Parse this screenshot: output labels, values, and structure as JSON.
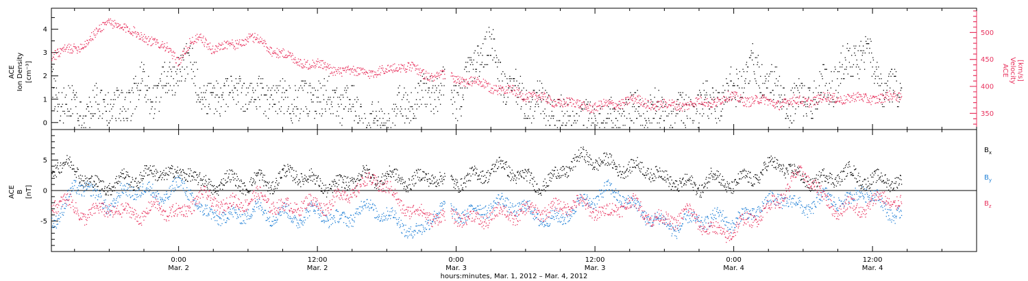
{
  "colors": {
    "black": "#000000",
    "pink": "#e8305c",
    "blue": "#1e7fd6"
  },
  "time_axis": {
    "caption": "hours:minutes, Mar. 1, 2012 – Mar. 4, 2012",
    "ticks": [
      {
        "hours": 24,
        "time": "0:00",
        "date": "Mar. 2"
      },
      {
        "hours": 36,
        "time": "12:00",
        "date": "Mar. 2"
      },
      {
        "hours": 48,
        "time": "0:00",
        "date": "Mar. 3"
      },
      {
        "hours": 60,
        "time": "12:00",
        "date": "Mar. 3"
      },
      {
        "hours": 72,
        "time": "0:00",
        "date": "Mar. 4"
      },
      {
        "hours": 84,
        "time": "12:00",
        "date": "Mar. 4"
      }
    ],
    "range_hours": [
      13,
      93
    ],
    "data_end_hours": 86.5,
    "data_gap_hours": [
      47.0,
      47.5
    ]
  },
  "chart_data": [
    {
      "type": "scatter",
      "panel": "top",
      "left_axis": {
        "title_lines": [
          "ACE",
          "Ion Density"
        ],
        "unit": "[cm⁻³]",
        "range": [
          -0.3,
          4.9
        ],
        "ticks": [
          0,
          1,
          2,
          3,
          4
        ],
        "tick_labels": [
          "0",
          "1",
          "2",
          "3",
          "4"
        ]
      },
      "right_axis": {
        "title_lines": [
          "ACE",
          "Velocity"
        ],
        "unit": "[km/s]",
        "range": [
          320,
          545
        ],
        "ticks": [
          350,
          400,
          450,
          500
        ],
        "tick_labels": [
          "350",
          "400",
          "450",
          "500"
        ]
      },
      "series": [
        {
          "color": "black",
          "axis": "left",
          "x_hours": [
            13,
            14,
            15,
            16,
            17,
            18,
            19,
            20,
            21,
            22,
            23,
            24,
            25,
            26,
            27,
            28,
            29,
            30,
            31,
            32,
            33,
            34,
            35,
            36,
            37,
            38,
            39,
            40,
            41,
            42,
            43,
            44,
            45,
            46,
            47,
            48,
            49,
            50,
            51,
            52,
            53,
            54,
            55,
            56,
            57,
            58,
            59,
            60,
            61,
            62,
            63,
            64,
            65,
            66,
            67,
            68,
            69,
            70,
            71,
            72,
            73,
            74,
            75,
            76,
            77,
            78,
            79,
            80,
            81,
            82,
            83,
            84,
            85,
            86
          ],
          "values": [
            1.5,
            1.0,
            0.6,
            0.4,
            0.7,
            0.9,
            0.4,
            1.3,
            1.6,
            1.1,
            1.8,
            2.3,
            2.6,
            1.2,
            0.8,
            1.5,
            1.0,
            1.3,
            0.9,
            1.2,
            0.8,
            1.1,
            0.7,
            1.4,
            0.9,
            1.0,
            0.6,
            0.1,
            0.1,
            0.1,
            0.5,
            0.9,
            1.2,
            1.3,
            1.6,
            1.0,
            1.8,
            3.0,
            3.3,
            1.8,
            1.2,
            1.0,
            0.8,
            0.6,
            0.3,
            0.2,
            0.1,
            0.1,
            0.2,
            0.3,
            0.5,
            0.4,
            0.6,
            0.2,
            0.3,
            0.5,
            0.6,
            0.9,
            1.1,
            1.6,
            2.1,
            2.5,
            1.6,
            1.2,
            0.7,
            1.0,
            1.2,
            1.6,
            2.0,
            2.7,
            3.0,
            2.5,
            1.2,
            1.4
          ]
        },
        {
          "color": "pink",
          "axis": "right",
          "x_hours": [
            13,
            14,
            15,
            16,
            17,
            18,
            19,
            20,
            21,
            22,
            23,
            24,
            25,
            26,
            27,
            28,
            29,
            30,
            31,
            32,
            33,
            34,
            35,
            36,
            37,
            38,
            39,
            40,
            41,
            42,
            43,
            44,
            45,
            46,
            47,
            48,
            49,
            50,
            51,
            52,
            53,
            54,
            55,
            56,
            57,
            58,
            59,
            60,
            61,
            62,
            63,
            64,
            65,
            66,
            67,
            68,
            69,
            70,
            71,
            72,
            73,
            74,
            75,
            76,
            77,
            78,
            79,
            80,
            81,
            82,
            83,
            84,
            85,
            86
          ],
          "values": [
            460,
            465,
            470,
            485,
            500,
            525,
            510,
            500,
            495,
            480,
            470,
            450,
            480,
            490,
            470,
            475,
            480,
            490,
            485,
            470,
            460,
            450,
            445,
            440,
            435,
            430,
            425,
            430,
            425,
            430,
            440,
            435,
            425,
            420,
            420,
            415,
            410,
            405,
            400,
            395,
            390,
            385,
            380,
            375,
            372,
            368,
            366,
            362,
            365,
            370,
            375,
            372,
            368,
            365,
            366,
            368,
            370,
            372,
            378,
            380,
            376,
            374,
            372,
            370,
            372,
            374,
            376,
            378,
            380,
            378,
            378,
            380,
            378,
            382
          ]
        }
      ]
    },
    {
      "type": "scatter",
      "panel": "bottom",
      "left_axis": {
        "title_lines": [
          "ACE",
          "B"
        ],
        "unit": "[nT]",
        "range": [
          -10,
          10
        ],
        "ticks": [
          -5,
          0,
          5
        ],
        "tick_labels": [
          "-5",
          "0",
          "5"
        ]
      },
      "zero_line": true,
      "series": [
        {
          "name": "Bx",
          "name_base": "B",
          "name_sub": "x",
          "color": "black",
          "x_hours": [
            13,
            14,
            15,
            16,
            17,
            18,
            19,
            20,
            21,
            22,
            23,
            24,
            25,
            26,
            27,
            28,
            29,
            30,
            31,
            32,
            33,
            34,
            35,
            36,
            37,
            38,
            39,
            40,
            41,
            42,
            43,
            44,
            45,
            46,
            47,
            48,
            49,
            50,
            51,
            52,
            53,
            54,
            55,
            56,
            57,
            58,
            59,
            60,
            61,
            62,
            63,
            64,
            65,
            66,
            67,
            68,
            69,
            70,
            71,
            72,
            73,
            74,
            75,
            76,
            77,
            78,
            79,
            80,
            81,
            82,
            83,
            84,
            85,
            86
          ],
          "values": [
            4.0,
            4.5,
            3.5,
            2.0,
            0.5,
            1.0,
            2.0,
            1.5,
            3.0,
            2.5,
            3.5,
            2.0,
            3.5,
            1.0,
            0.5,
            2.0,
            1.5,
            1.0,
            2.0,
            1.0,
            2.5,
            3.0,
            2.0,
            1.5,
            0.5,
            1.0,
            2.0,
            2.5,
            2.0,
            2.5,
            2.0,
            1.5,
            2.0,
            2.5,
            1.5,
            1.5,
            2.0,
            2.5,
            3.5,
            4.0,
            3.0,
            2.0,
            1.0,
            1.5,
            3.0,
            4.5,
            5.5,
            5.0,
            4.5,
            4.0,
            3.5,
            4.0,
            3.0,
            2.0,
            1.5,
            1.0,
            0.5,
            2.5,
            1.5,
            1.0,
            2.0,
            2.5,
            4.0,
            4.5,
            3.0,
            2.0,
            1.5,
            2.0,
            2.5,
            3.0,
            2.0,
            1.5,
            2.0,
            1.5
          ]
        },
        {
          "name": "By",
          "name_base": "B",
          "name_sub": "y",
          "color": "blue",
          "x_hours": [
            13,
            14,
            15,
            16,
            17,
            18,
            19,
            20,
            21,
            22,
            23,
            24,
            25,
            26,
            27,
            28,
            29,
            30,
            31,
            32,
            33,
            34,
            35,
            36,
            37,
            38,
            39,
            40,
            41,
            42,
            43,
            44,
            45,
            46,
            47,
            48,
            49,
            50,
            51,
            52,
            53,
            54,
            55,
            56,
            57,
            58,
            59,
            60,
            61,
            62,
            63,
            64,
            65,
            66,
            67,
            68,
            69,
            70,
            71,
            72,
            73,
            74,
            75,
            76,
            77,
            78,
            79,
            80,
            81,
            82,
            83,
            84,
            85,
            86
          ],
          "values": [
            -5.0,
            -3.0,
            0.5,
            1.0,
            -1.5,
            -2.5,
            -0.5,
            0.0,
            0.5,
            -1.0,
            -0.5,
            1.0,
            0.0,
            -4.0,
            -3.5,
            -4.5,
            -4.0,
            -3.5,
            -3.0,
            -4.0,
            -3.5,
            -4.5,
            -4.0,
            -3.0,
            -4.5,
            -5.0,
            -4.0,
            -2.5,
            -3.0,
            -4.0,
            -5.0,
            -6.5,
            -7.0,
            -3.5,
            -3.0,
            -3.5,
            -4.0,
            -3.0,
            -2.5,
            -2.0,
            -2.5,
            -3.0,
            -4.0,
            -5.0,
            -4.5,
            -3.0,
            -2.0,
            -1.0,
            0.0,
            -0.5,
            -2.0,
            -3.5,
            -4.5,
            -5.5,
            -6.0,
            -5.0,
            -4.5,
            -5.0,
            -4.0,
            -5.5,
            -4.0,
            -3.0,
            -2.0,
            -1.0,
            -2.0,
            -3.0,
            -2.0,
            -1.0,
            -1.5,
            -2.0,
            0.5,
            -1.0,
            -2.5,
            -4.0
          ]
        },
        {
          "name": "Bz",
          "name_base": "B",
          "name_sub": "z",
          "color": "pink",
          "x_hours": [
            13,
            14,
            15,
            16,
            17,
            18,
            19,
            20,
            21,
            22,
            23,
            24,
            25,
            26,
            27,
            28,
            29,
            30,
            31,
            32,
            33,
            34,
            35,
            36,
            37,
            38,
            39,
            40,
            41,
            42,
            43,
            44,
            45,
            46,
            47,
            48,
            49,
            50,
            51,
            52,
            53,
            54,
            55,
            56,
            57,
            58,
            59,
            60,
            61,
            62,
            63,
            64,
            65,
            66,
            67,
            68,
            69,
            70,
            71,
            72,
            73,
            74,
            75,
            76,
            77,
            78,
            79,
            80,
            81,
            82,
            83,
            84,
            85,
            86
          ],
          "values": [
            -2.0,
            -1.5,
            -3.0,
            -4.0,
            -3.5,
            -2.5,
            -4.0,
            -3.0,
            -4.5,
            -2.0,
            -3.5,
            -4.0,
            -2.0,
            -1.0,
            -1.5,
            -2.5,
            -2.0,
            -1.5,
            -1.0,
            -2.0,
            -3.0,
            -2.5,
            -2.0,
            -2.5,
            -2.0,
            -1.0,
            0.0,
            1.0,
            2.0,
            0.5,
            -2.0,
            -3.0,
            -4.0,
            -4.0,
            -4.5,
            -4.0,
            -4.5,
            -5.0,
            -4.0,
            -3.5,
            -4.0,
            -3.5,
            -3.0,
            -3.5,
            -2.5,
            -2.0,
            -2.5,
            -3.0,
            -4.0,
            -2.5,
            -2.0,
            -3.0,
            -4.5,
            -5.0,
            -4.5,
            -3.5,
            -5.0,
            -6.5,
            -7.0,
            -6.5,
            -5.0,
            -4.0,
            -3.0,
            -1.0,
            1.5,
            3.0,
            1.0,
            -2.0,
            -3.0,
            -2.5,
            -3.0,
            -2.0,
            -1.0,
            -2.0
          ]
        }
      ]
    }
  ]
}
